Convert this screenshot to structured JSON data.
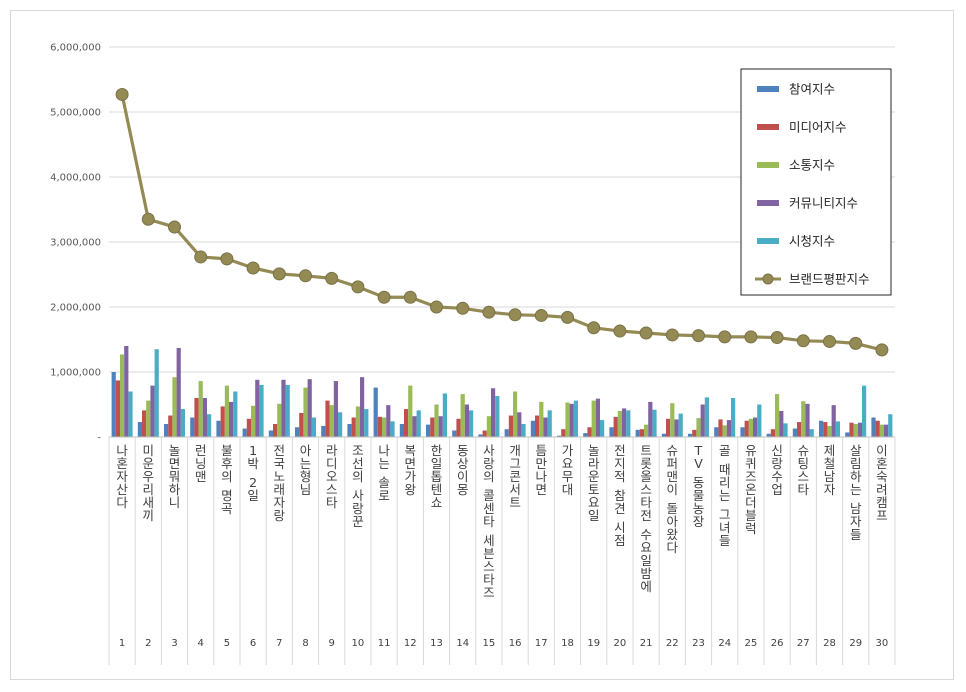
{
  "chart_data": {
    "type": "bar",
    "title": "",
    "xlabel": "",
    "ylabel": "",
    "ylim": [
      0,
      6000000
    ],
    "y_ticks": [
      "-",
      "1,000,000",
      "2,000,000",
      "3,000,000",
      "4,000,000",
      "5,000,000",
      "6,000,000"
    ],
    "grid": true,
    "legend_position": "top-right",
    "rank_labels": [
      "1",
      "2",
      "3",
      "4",
      "5",
      "6",
      "7",
      "8",
      "9",
      "10",
      "11",
      "12",
      "13",
      "14",
      "15",
      "16",
      "17",
      "18",
      "19",
      "20",
      "21",
      "22",
      "23",
      "24",
      "25",
      "26",
      "27",
      "28",
      "29",
      "30"
    ],
    "categories": [
      "나혼자산다",
      "미운우리새끼",
      "놀면뭐하니",
      "런닝맨",
      "불후의 명곡",
      "1박 2일",
      "전국노래자랑",
      "아는형님",
      "라디오스타",
      "조선의 사랑꾼",
      "나는 솔로",
      "복면가왕",
      "한일톱텐쇼",
      "동상이몽",
      "사랑의 콜센타 세븐스타즈",
      "개그콘서트",
      "틈만나면",
      "가요무대",
      "놀라운토요일",
      "전지적 참견 시점",
      "트롯올스타전 수요일밤에",
      "슈퍼맨이 돌아왔다",
      "TV 동물농장",
      "골 때리는 그녀들",
      "유퀴즈온더블럭",
      "신랑수업",
      "슈팅스타",
      "제철남자",
      "살림하는 남자들",
      "이혼숙려캠프"
    ],
    "series": [
      {
        "name": "참여지수",
        "type": "bar",
        "color": "#4f81bd",
        "values": [
          1000000,
          230000,
          200000,
          300000,
          250000,
          130000,
          100000,
          150000,
          170000,
          200000,
          760000,
          200000,
          190000,
          100000,
          40000,
          120000,
          250000,
          20000,
          60000,
          150000,
          110000,
          50000,
          50000,
          150000,
          150000,
          50000,
          130000,
          250000,
          70000,
          300000
        ]
      },
      {
        "name": "미디어지수",
        "type": "bar",
        "color": "#c0504d",
        "values": [
          870000,
          410000,
          330000,
          600000,
          470000,
          280000,
          200000,
          370000,
          560000,
          300000,
          310000,
          430000,
          300000,
          280000,
          100000,
          330000,
          330000,
          120000,
          150000,
          310000,
          120000,
          280000,
          110000,
          270000,
          250000,
          120000,
          230000,
          230000,
          220000,
          250000
        ]
      },
      {
        "name": "소통지수",
        "type": "bar",
        "color": "#9bbb59",
        "values": [
          1270000,
          560000,
          920000,
          860000,
          790000,
          480000,
          510000,
          760000,
          490000,
          470000,
          300000,
          790000,
          500000,
          660000,
          320000,
          700000,
          540000,
          530000,
          560000,
          400000,
          190000,
          520000,
          290000,
          180000,
          280000,
          660000,
          550000,
          170000,
          200000,
          190000
        ]
      },
      {
        "name": "커뮤니티지수",
        "type": "bar",
        "color": "#8064a2",
        "values": [
          1400000,
          790000,
          1370000,
          600000,
          540000,
          880000,
          880000,
          890000,
          860000,
          920000,
          490000,
          320000,
          320000,
          500000,
          750000,
          380000,
          300000,
          510000,
          590000,
          440000,
          540000,
          270000,
          500000,
          260000,
          300000,
          400000,
          510000,
          490000,
          220000,
          190000
        ]
      },
      {
        "name": "시청지수",
        "type": "bar",
        "color": "#4bacc6",
        "values": [
          700000,
          1350000,
          430000,
          350000,
          700000,
          800000,
          800000,
          300000,
          380000,
          430000,
          240000,
          410000,
          670000,
          410000,
          630000,
          200000,
          410000,
          560000,
          260000,
          410000,
          420000,
          360000,
          610000,
          600000,
          500000,
          210000,
          120000,
          240000,
          790000,
          350000
        ]
      },
      {
        "name": "브랜드평판지수",
        "type": "line",
        "color": "#948a54",
        "values": [
          5270000,
          3350000,
          3230000,
          2770000,
          2740000,
          2600000,
          2510000,
          2480000,
          2440000,
          2310000,
          2150000,
          2150000,
          2000000,
          1980000,
          1920000,
          1880000,
          1870000,
          1840000,
          1680000,
          1630000,
          1600000,
          1570000,
          1560000,
          1540000,
          1540000,
          1530000,
          1480000,
          1470000,
          1440000,
          1340000
        ]
      }
    ]
  }
}
